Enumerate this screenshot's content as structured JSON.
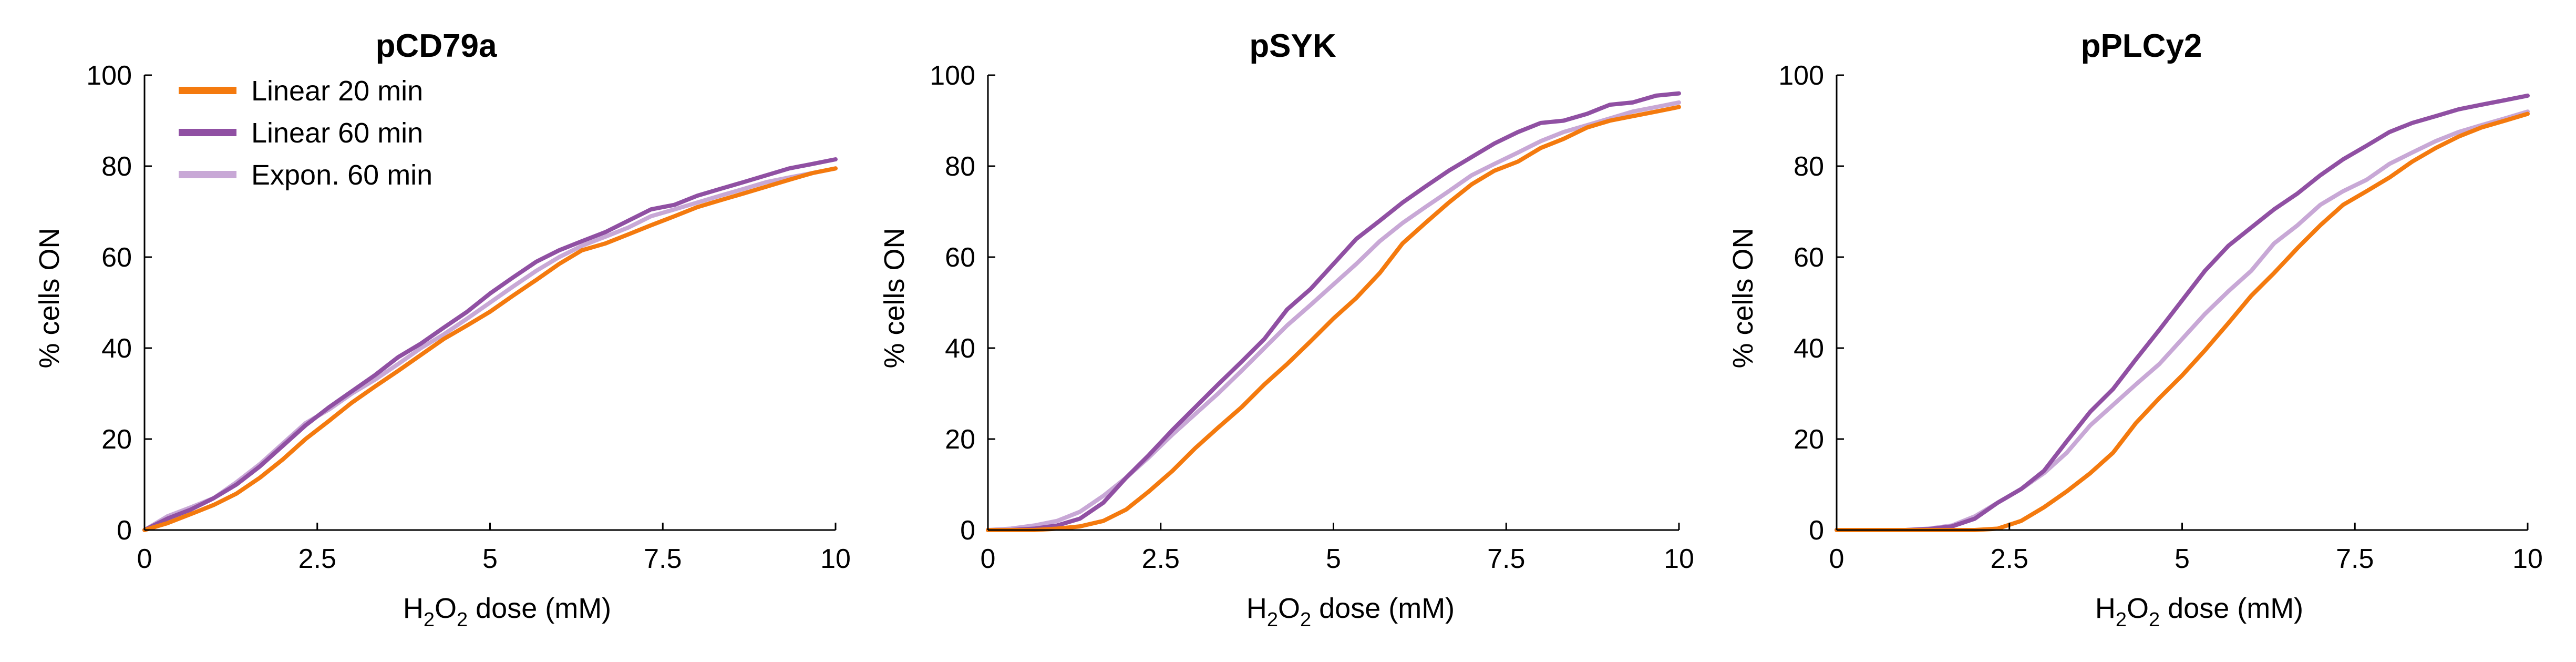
{
  "chart_data": [
    {
      "type": "line",
      "title": "pCD79a",
      "xlabel_prefix": "H",
      "xlabel_sub1": "2",
      "xlabel_mid": "O",
      "xlabel_sub2": "2",
      "xlabel_suffix": " dose (mM)",
      "ylabel": "% cells ON",
      "xlim": [
        0,
        10
      ],
      "ylim": [
        0,
        100
      ],
      "xticks": [
        "0",
        "2.5",
        "5",
        "7.5",
        "10"
      ],
      "yticks": [
        "0",
        "20",
        "40",
        "60",
        "80",
        "100"
      ],
      "legend": {
        "placement": "top-left"
      },
      "series": [
        {
          "name": "Linear 20 min",
          "color": "#f47a0e",
          "x": [
            0,
            0.33,
            0.67,
            1.0,
            1.33,
            1.67,
            2.0,
            2.33,
            2.67,
            3.0,
            3.33,
            3.67,
            4.0,
            4.33,
            4.67,
            5.0,
            5.33,
            5.67,
            6.0,
            6.33,
            6.67,
            7.0,
            7.33,
            7.67,
            8.0,
            8.33,
            8.67,
            9.0,
            9.33,
            9.67,
            10.0
          ],
          "y": [
            0,
            1.5,
            3.5,
            5.5,
            8,
            11.5,
            15.5,
            20,
            24,
            28,
            31.5,
            35,
            38.5,
            42,
            45,
            48,
            51.5,
            55,
            58.5,
            61.5,
            63,
            65,
            67,
            69,
            71,
            72.5,
            74,
            75.5,
            77,
            78.5,
            79.5
          ]
        },
        {
          "name": "Linear 60 min",
          "color": "#9050a3",
          "x": [
            0,
            0.33,
            0.67,
            1.0,
            1.33,
            1.67,
            2.0,
            2.33,
            2.67,
            3.0,
            3.33,
            3.67,
            4.0,
            4.33,
            4.67,
            5.0,
            5.33,
            5.67,
            6.0,
            6.33,
            6.67,
            7.0,
            7.33,
            7.67,
            8.0,
            8.33,
            8.67,
            9.0,
            9.33,
            9.67,
            10.0
          ],
          "y": [
            0,
            2.5,
            4.5,
            7,
            10,
            14,
            18.5,
            23,
            27,
            30.5,
            34,
            38,
            41,
            44.5,
            48,
            52,
            55.5,
            59,
            61.5,
            63.5,
            65.5,
            68,
            70.5,
            71.5,
            73.5,
            75,
            76.5,
            78,
            79.5,
            80.5,
            81.5
          ]
        },
        {
          "name": "Expon. 60 min",
          "color": "#c8a8d6",
          "x": [
            0,
            0.33,
            0.67,
            1.0,
            1.33,
            1.67,
            2.0,
            2.33,
            2.67,
            3.0,
            3.33,
            3.67,
            4.0,
            4.33,
            4.67,
            5.0,
            5.33,
            5.67,
            6.0,
            6.33,
            6.67,
            7.0,
            7.33,
            7.67,
            8.0,
            8.33,
            8.67,
            9.0,
            9.33,
            9.67,
            10.0
          ],
          "y": [
            0,
            3,
            5,
            7,
            10.5,
            14.5,
            19,
            23.5,
            26.5,
            30,
            33,
            36.5,
            40,
            43,
            46.5,
            50,
            53.5,
            57,
            60,
            62.5,
            64.5,
            66.5,
            69,
            70.5,
            72,
            73.5,
            75,
            76.5,
            77.5,
            78.5,
            79.5
          ]
        }
      ]
    },
    {
      "type": "line",
      "title": "pSYK",
      "xlabel_prefix": "H",
      "xlabel_sub1": "2",
      "xlabel_mid": "O",
      "xlabel_sub2": "2",
      "xlabel_suffix": " dose (mM)",
      "ylabel": "% cells ON",
      "xlim": [
        0,
        10
      ],
      "ylim": [
        0,
        100
      ],
      "xticks": [
        "0",
        "2.5",
        "5",
        "7.5",
        "10"
      ],
      "yticks": [
        "0",
        "20",
        "40",
        "60",
        "80",
        "100"
      ],
      "series": [
        {
          "name": "Linear 20 min",
          "color": "#f47a0e",
          "x": [
            0,
            0.33,
            0.67,
            1.0,
            1.33,
            1.67,
            2.0,
            2.33,
            2.67,
            3.0,
            3.33,
            3.67,
            4.0,
            4.33,
            4.67,
            5.0,
            5.33,
            5.67,
            6.0,
            6.33,
            6.67,
            7.0,
            7.33,
            7.67,
            8.0,
            8.33,
            8.67,
            9.0,
            9.33,
            9.67,
            10.0
          ],
          "y": [
            0,
            0,
            0,
            0.3,
            0.8,
            2,
            4.5,
            8.5,
            13,
            18,
            22.5,
            27,
            32,
            36.5,
            41.5,
            46.5,
            51,
            56.5,
            63,
            67.5,
            72,
            76,
            79,
            81,
            84,
            86,
            88.5,
            90,
            91,
            92,
            93
          ]
        },
        {
          "name": "Linear 60 min",
          "color": "#9050a3",
          "x": [
            0,
            0.33,
            0.67,
            1.0,
            1.33,
            1.67,
            2.0,
            2.33,
            2.67,
            3.0,
            3.33,
            3.67,
            4.0,
            4.33,
            4.67,
            5.0,
            5.33,
            5.67,
            6.0,
            6.33,
            6.67,
            7.0,
            7.33,
            7.67,
            8.0,
            8.33,
            8.67,
            9.0,
            9.33,
            9.67,
            10.0
          ],
          "y": [
            0,
            0,
            0.3,
            1,
            2.5,
            6,
            11.5,
            16.5,
            22,
            27,
            32,
            37,
            42,
            48.5,
            53,
            58.5,
            64,
            68,
            72,
            75.5,
            79,
            82,
            85,
            87.5,
            89.5,
            90,
            91.5,
            93.5,
            94,
            95.5,
            96
          ]
        },
        {
          "name": "Expon. 60 min",
          "color": "#c8a8d6",
          "x": [
            0,
            0.33,
            0.67,
            1.0,
            1.33,
            1.67,
            2.0,
            2.33,
            2.67,
            3.0,
            3.33,
            3.67,
            4.0,
            4.33,
            4.67,
            5.0,
            5.33,
            5.67,
            6.0,
            6.33,
            6.67,
            7.0,
            7.33,
            7.67,
            8.0,
            8.33,
            8.67,
            9.0,
            9.33,
            9.67,
            10.0
          ],
          "y": [
            0,
            0.3,
            1,
            2,
            4,
            7.5,
            11.5,
            16,
            21,
            25.5,
            30,
            35,
            40,
            45,
            49.5,
            54,
            58.5,
            63.5,
            67.5,
            71,
            74.5,
            78,
            80.5,
            83,
            85.5,
            87.5,
            89,
            90.5,
            92,
            93,
            94
          ]
        }
      ]
    },
    {
      "type": "line",
      "title": "pPLCy2",
      "xlabel_prefix": "H",
      "xlabel_sub1": "2",
      "xlabel_mid": "O",
      "xlabel_sub2": "2",
      "xlabel_suffix": " dose (mM)",
      "ylabel": "% cells ON",
      "xlim": [
        0,
        10
      ],
      "ylim": [
        0,
        100
      ],
      "xticks": [
        "0",
        "2.5",
        "5",
        "7.5",
        "10"
      ],
      "yticks": [
        "0",
        "20",
        "40",
        "60",
        "80",
        "100"
      ],
      "series": [
        {
          "name": "Linear 20 min",
          "color": "#f47a0e",
          "x": [
            0,
            0.33,
            0.67,
            1.0,
            1.33,
            1.67,
            2.0,
            2.33,
            2.67,
            3.0,
            3.33,
            3.67,
            4.0,
            4.33,
            4.67,
            5.0,
            5.33,
            5.67,
            6.0,
            6.33,
            6.67,
            7.0,
            7.33,
            7.67,
            8.0,
            8.33,
            8.67,
            9.0,
            9.33,
            9.67,
            10.0
          ],
          "y": [
            0,
            0,
            0,
            0,
            0,
            0,
            0,
            0.3,
            2,
            5,
            8.5,
            12.5,
            17,
            23.5,
            29,
            34,
            39.5,
            45.5,
            51.5,
            56.5,
            62,
            67,
            71.5,
            74.5,
            77.5,
            81,
            84,
            86.5,
            88.5,
            90,
            91.5
          ]
        },
        {
          "name": "Linear 60 min",
          "color": "#9050a3",
          "x": [
            0,
            0.33,
            0.67,
            1.0,
            1.33,
            1.67,
            2.0,
            2.33,
            2.67,
            3.0,
            3.33,
            3.67,
            4.0,
            4.33,
            4.67,
            5.0,
            5.33,
            5.67,
            6.0,
            6.33,
            6.67,
            7.0,
            7.33,
            7.67,
            8.0,
            8.33,
            8.67,
            9.0,
            9.33,
            9.67,
            10.0
          ],
          "y": [
            0,
            0,
            0,
            0,
            0.2,
            0.8,
            2.5,
            6,
            9,
            13,
            19.5,
            26,
            31,
            37.5,
            44,
            50.5,
            57,
            62.5,
            66.5,
            70.5,
            74,
            78,
            81.5,
            84.5,
            87.5,
            89.5,
            91,
            92.5,
            93.5,
            94.5,
            95.5
          ]
        },
        {
          "name": "Expon. 60 min",
          "color": "#c8a8d6",
          "x": [
            0,
            0.33,
            0.67,
            1.0,
            1.33,
            1.67,
            2.0,
            2.33,
            2.67,
            3.0,
            3.33,
            3.67,
            4.0,
            4.33,
            4.67,
            5.0,
            5.33,
            5.67,
            6.0,
            6.33,
            6.67,
            7.0,
            7.33,
            7.67,
            8.0,
            8.33,
            8.67,
            9.0,
            9.33,
            9.67,
            10.0
          ],
          "y": [
            0,
            0,
            0,
            0,
            0.3,
            1,
            3,
            6,
            9,
            12.5,
            17,
            23,
            27.5,
            32,
            36.5,
            42,
            47.5,
            52.5,
            57,
            63,
            67,
            71.5,
            74.5,
            77,
            80.5,
            83,
            85.5,
            87.5,
            89,
            90.5,
            92
          ]
        }
      ]
    }
  ]
}
